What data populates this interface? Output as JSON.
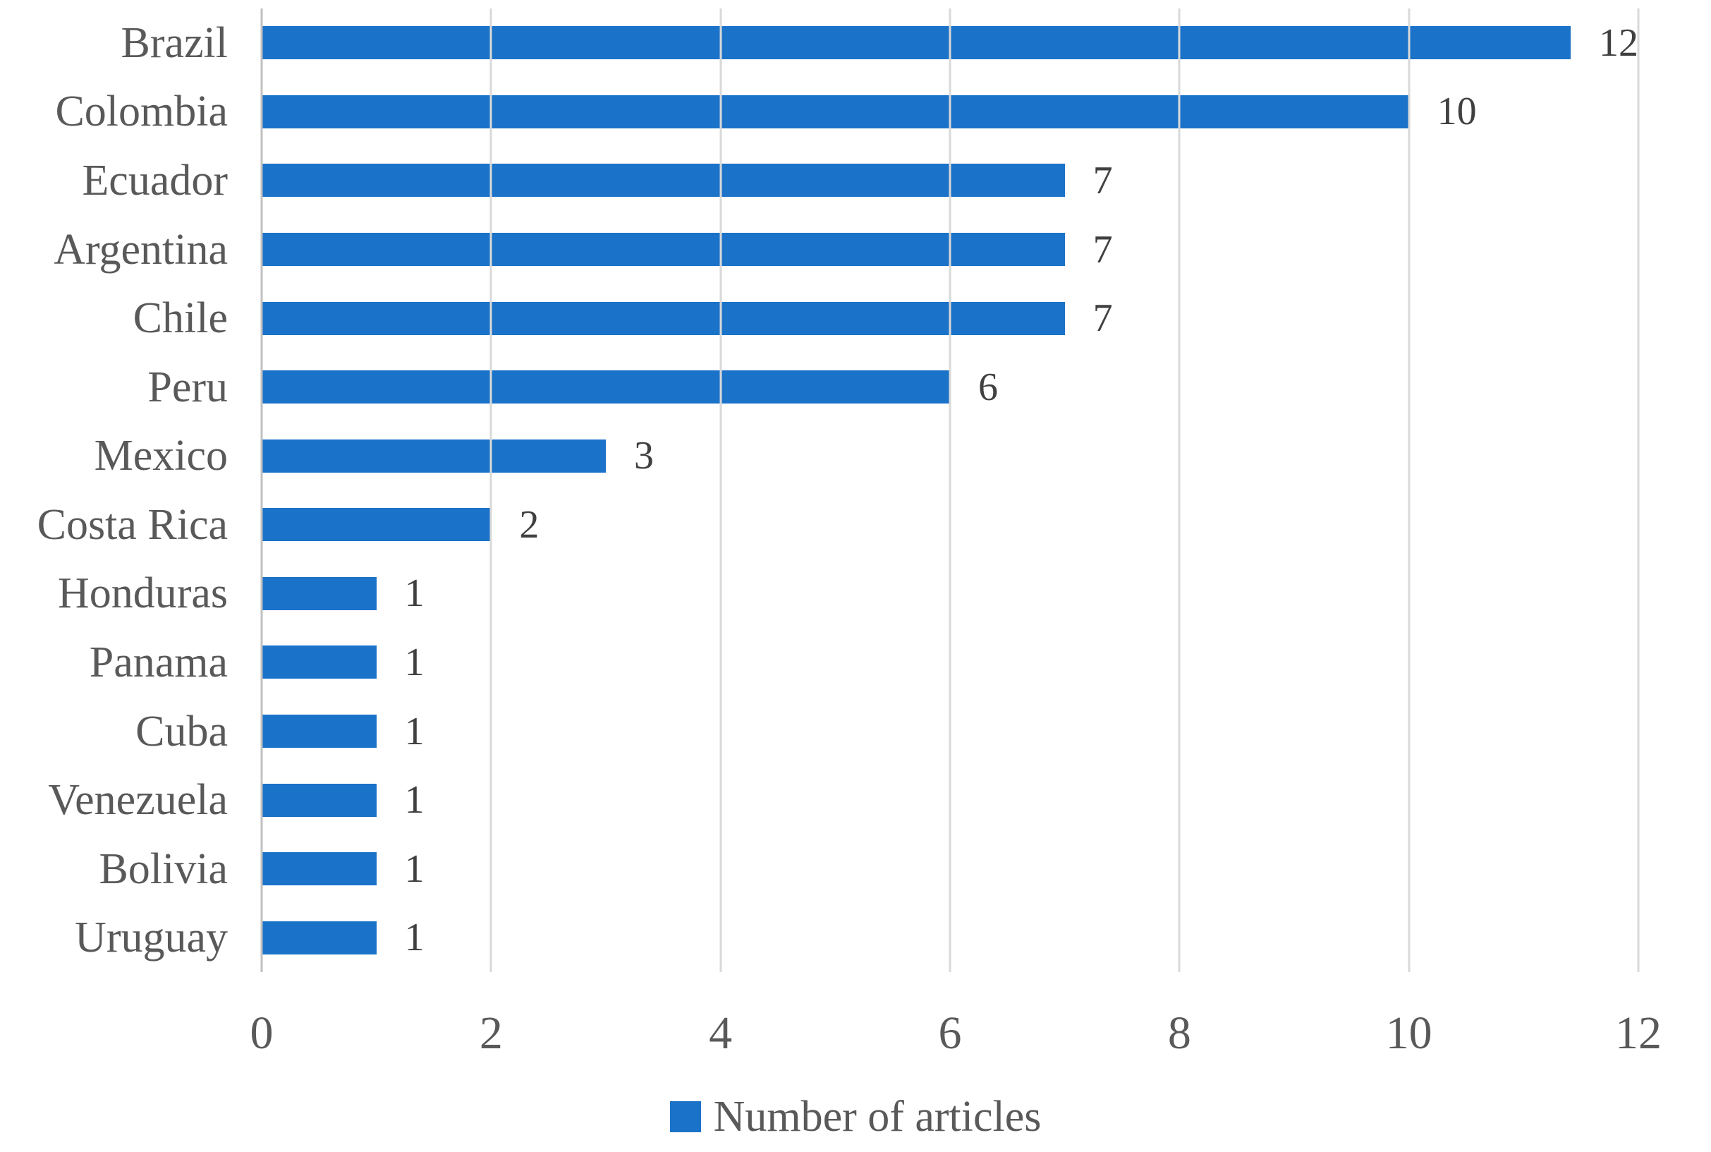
{
  "chart_data": {
    "type": "bar",
    "orientation": "horizontal",
    "title": "",
    "xlabel": "",
    "ylabel": "",
    "categories": [
      "Brazil",
      "Colombia",
      "Ecuador",
      "Argentina",
      "Chile",
      "Peru",
      "Mexico",
      "Costa Rica",
      "Honduras",
      "Panama",
      "Cuba",
      "Venezuela",
      "Bolivia",
      "Uruguay"
    ],
    "values": [
      12,
      10,
      7,
      7,
      7,
      6,
      3,
      2,
      1,
      1,
      1,
      1,
      1,
      1
    ],
    "series_name": "Number of articles",
    "xlim": [
      0,
      12
    ],
    "xticks": [
      0,
      2,
      4,
      6,
      8,
      10,
      12
    ],
    "grid": "vertical-gridlines-on",
    "data_labels": "end-of-bar",
    "legend_position": "bottom-center"
  },
  "legend": {
    "label": "Number of articles"
  },
  "colors": {
    "bar": "#1b72c9",
    "gridline": "#d9d9d9",
    "axis_line": "#c0c0c0",
    "category_text": "#595959",
    "tick_text": "#595959",
    "value_text": "#404040",
    "legend_text": "#595959",
    "background": "#ffffff"
  }
}
